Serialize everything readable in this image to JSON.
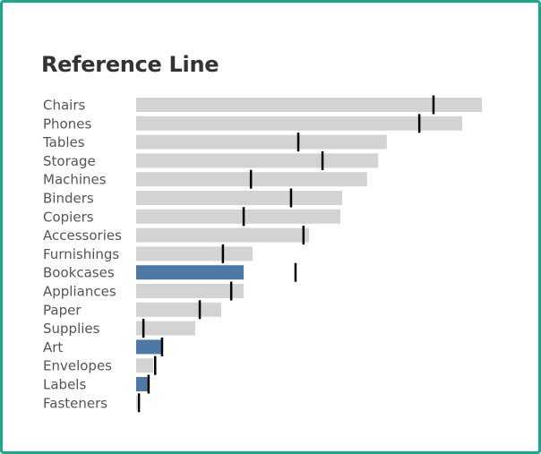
{
  "colors": {
    "border": "#1aaa8a",
    "bar_default": "#d3d3d5",
    "bar_highlight": "#4e79a7",
    "reference_mark": "#000000"
  },
  "chart_data": {
    "type": "bar",
    "orientation": "horizontal",
    "title": "Reference Line",
    "xlabel": "",
    "ylabel": "",
    "xlim": [
      0,
      100
    ],
    "grid": false,
    "legend": "none",
    "categories": [
      "Chairs",
      "Phones",
      "Tables",
      "Storage",
      "Machines",
      "Binders",
      "Copiers",
      "Accessories",
      "Furnishings",
      "Bookcases",
      "Appliances",
      "Paper",
      "Supplies",
      "Art",
      "Envelopes",
      "Labels",
      "Fasteners"
    ],
    "series": [
      {
        "values": [
          100,
          94.3,
          72.5,
          70,
          66.8,
          59.6,
          59.1,
          50,
          33.7,
          31.1,
          31.1,
          24.6,
          17.1,
          7.5,
          4.9,
          3.6,
          0.3
        ]
      },
      {
        "values": [
          86,
          81.9,
          46.9,
          53.9,
          33.2,
          44.8,
          31.1,
          48.4,
          25.1,
          46.1,
          27.5,
          18.4,
          2.1,
          7.5,
          5.5,
          3.6,
          0.8
        ]
      }
    ],
    "highlighted": [
      "Bookcases",
      "Art",
      "Labels"
    ]
  }
}
